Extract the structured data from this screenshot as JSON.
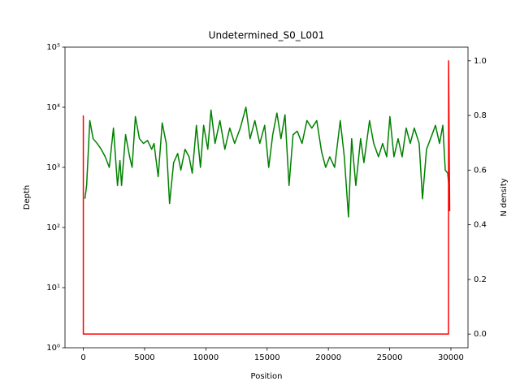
{
  "chart_data": {
    "type": "line",
    "title": "Undetermined_S0_L001",
    "x_label": "Position",
    "y_label": "Depth",
    "y2_label": "N density",
    "yscale": "log",
    "xlim": [
      -1495,
      31395
    ],
    "xticks": [
      0,
      5000,
      10000,
      15000,
      20000,
      25000,
      30000
    ],
    "ylim": [
      1,
      100000
    ],
    "yticks": [
      {
        "value": 1,
        "label": "10⁰"
      },
      {
        "value": 10,
        "label": "10¹"
      },
      {
        "value": 100,
        "label": "10²"
      },
      {
        "value": 1000,
        "label": "10³"
      },
      {
        "value": 10000,
        "label": "10⁴"
      },
      {
        "value": 100000,
        "label": "10⁵"
      }
    ],
    "y2lim": [
      -0.05,
      1.05
    ],
    "y2ticks": [
      {
        "value": 0,
        "label": "0.0"
      },
      {
        "value": 0.2,
        "label": "0.2"
      },
      {
        "value": 0.4,
        "label": "0.4"
      },
      {
        "value": 0.6,
        "label": "0.6"
      },
      {
        "value": 0.8,
        "label": "0.8"
      },
      {
        "value": 1,
        "label": "1.0"
      }
    ],
    "y_label_color": "#008000",
    "y2_label_color": "#ff0000",
    "series": [
      {
        "color": "#008000",
        "x": [
          130,
          270,
          530,
          800,
          1130,
          1460,
          1790,
          2120,
          2460,
          2790,
          2990,
          3120,
          3450,
          3780,
          3980,
          4250,
          4580,
          4910,
          5240,
          5580,
          5770,
          6110,
          6440,
          6770,
          7040,
          7370,
          7700,
          7960,
          8300,
          8630,
          8890,
          9230,
          9560,
          9820,
          10160,
          10420,
          10750,
          11150,
          11550,
          11950,
          12350,
          12810,
          13270,
          13610,
          14000,
          14400,
          14800,
          15130,
          15460,
          15800,
          16130,
          16460,
          16790,
          17120,
          17460,
          17850,
          18250,
          18650,
          19050,
          19450,
          19780,
          20110,
          20510,
          20970,
          21300,
          21640,
          21900,
          22240,
          22630,
          22900,
          23360,
          23700,
          24090,
          24430,
          24760,
          25020,
          25350,
          25690,
          26020,
          26350,
          26680,
          27010,
          27410,
          27680,
          28010,
          28340,
          28740,
          29070,
          29340,
          29540,
          29740,
          29870
        ],
        "values": [
          300,
          500,
          6000,
          3000,
          2500,
          2000,
          1500,
          1000,
          4500,
          500,
          1300,
          500,
          3500,
          1500,
          1000,
          7000,
          3000,
          2500,
          2800,
          2000,
          2500,
          700,
          5500,
          2500,
          250,
          1200,
          1700,
          900,
          2000,
          1500,
          800,
          5000,
          1000,
          5000,
          2000,
          9000,
          2500,
          6000,
          2000,
          4500,
          2500,
          4500,
          10000,
          3000,
          6000,
          2500,
          5000,
          1000,
          3500,
          8000,
          3000,
          7500,
          500,
          3500,
          4000,
          2500,
          6000,
          4500,
          6000,
          1800,
          1000,
          1500,
          1000,
          6000,
          1500,
          150,
          3000,
          500,
          3000,
          1200,
          6000,
          2500,
          1500,
          2500,
          1500,
          7000,
          1500,
          3000,
          1500,
          4500,
          2500,
          4500,
          2500,
          300,
          2000,
          3000,
          5000,
          2500,
          5000,
          900,
          800,
          400
        ]
      },
      {
        "color": "#ff0000",
        "axis": "y2",
        "x": [
          0,
          0,
          29800,
          29810,
          29900
        ],
        "values": [
          0.8,
          0,
          0,
          1,
          0.45
        ]
      }
    ]
  }
}
